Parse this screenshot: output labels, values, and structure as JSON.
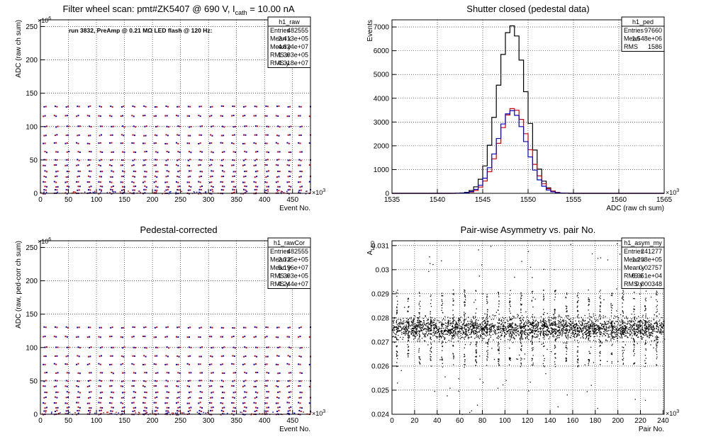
{
  "chart_data": [
    {
      "type": "scatter",
      "title": "Filter wheel scan: pmt#ZK5407 @   690 V, I",
      "title_sub": "cath",
      "title_tail": " = 10.00 nA",
      "annotation": "run 3832, PreAmp @ 0.21 MΩ LED flash @  120 Hz:",
      "xlabel": "Event No.",
      "ylabel": "ADC (raw ch sum)",
      "x_exponent": "×10",
      "x_exponent_power": "3",
      "y_exponent": "×10",
      "y_exponent_power": "6",
      "xlim": [
        0,
        482
      ],
      "ylim": [
        0,
        260
      ],
      "xticks": [
        "0",
        "50",
        "100",
        "150",
        "200",
        "250",
        "300",
        "350",
        "400",
        "450"
      ],
      "yticks": [
        "0",
        "50",
        "100",
        "150",
        "200",
        "250"
      ],
      "grid": true,
      "stats": {
        "name": "h1_raw",
        "rows": [
          {
            "label": "Entries",
            "value": "482555"
          },
          {
            "label": "Mean x",
            "value": "2.413e+05"
          },
          {
            "label": "Mean y",
            "value": "4.824e+07"
          },
          {
            "label": "RMS x",
            "value": "1.393e+05"
          },
          {
            "label": "RMS y",
            "value": "4.318e+07"
          }
        ]
      },
      "series_colors": [
        "#d00000",
        "#0000c8"
      ],
      "levels": [
        0,
        5,
        10,
        17,
        25,
        33,
        42,
        50,
        62,
        75,
        87,
        100,
        116,
        130
      ]
    },
    {
      "type": "line",
      "title": "Shutter closed (pedestal data)",
      "xlabel": "ADC (raw ch sum)",
      "ylabel": "Events",
      "x_exponent": "×10",
      "x_exponent_power": "3",
      "xlim": [
        1535,
        1565
      ],
      "ylim": [
        0,
        7300
      ],
      "xticks": [
        "1535",
        "1540",
        "1545",
        "1550",
        "1555",
        "1560",
        "1565"
      ],
      "yticks": [
        "0",
        "1000",
        "2000",
        "3000",
        "4000",
        "5000",
        "6000",
        "7000"
      ],
      "grid": true,
      "stats": {
        "name": "h1_ped",
        "rows": [
          {
            "label": "Entries",
            "value": "97660"
          },
          {
            "label": "Mean",
            "value": "1.548e+06"
          },
          {
            "label": "RMS",
            "value": "1586"
          }
        ]
      },
      "series": [
        {
          "color": "#000000",
          "mean": 1548.2,
          "sigma": 1.55,
          "peak": 7050
        },
        {
          "color": "#d00000",
          "mean": 1548.4,
          "sigma": 1.6,
          "peak": 3580
        },
        {
          "color": "#0000c8",
          "mean": 1548.2,
          "sigma": 1.6,
          "peak": 3480
        }
      ]
    },
    {
      "type": "scatter",
      "title": "Pedestal-corrected",
      "xlabel": "Event No.",
      "ylabel": "ADC (raw, ped-corr ch sum)",
      "x_exponent": "×10",
      "x_exponent_power": "3",
      "y_exponent": "×10",
      "y_exponent_power": "6",
      "xlim": [
        0,
        482
      ],
      "ylim": [
        0,
        260
      ],
      "xticks": [
        "0",
        "50",
        "100",
        "150",
        "200",
        "250",
        "300",
        "350",
        "400",
        "450"
      ],
      "yticks": [
        "0",
        "50",
        "100",
        "150",
        "200",
        "250"
      ],
      "grid": true,
      "stats": {
        "name": "h1_rawCor",
        "rows": [
          {
            "label": "Entries",
            "value": "482555"
          },
          {
            "label": "Mean x",
            "value": "2.325e+05"
          },
          {
            "label": "Mean y",
            "value": "5.196e+07"
          },
          {
            "label": "RMS x",
            "value": "1.393e+05"
          },
          {
            "label": "RMS y",
            "value": "4.244e+07"
          }
        ]
      },
      "series_colors": [
        "#d00000",
        "#0000c8"
      ],
      "levels": [
        0,
        5,
        10,
        17,
        25,
        33,
        42,
        50,
        62,
        75,
        87,
        100,
        116,
        130
      ]
    },
    {
      "type": "scatter",
      "title": "Pair-wise Asymmetry vs. pair No.",
      "xlabel": "Pair No.",
      "ylabel": "A",
      "ylabel_sub": "LED",
      "x_exponent": "×10",
      "x_exponent_power": "3",
      "xlim": [
        0,
        241
      ],
      "ylim": [
        0.024,
        0.0312
      ],
      "xticks": [
        "0",
        "20",
        "40",
        "60",
        "80",
        "100",
        "120",
        "140",
        "160",
        "180",
        "200",
        "220",
        "240"
      ],
      "yticks": [
        "0.024",
        "0.025",
        "0.026",
        "0.027",
        "0.028",
        "0.029",
        "0.03",
        "0.031"
      ],
      "grid": true,
      "stats": {
        "name": "h1_asym_my",
        "rows": [
          {
            "label": "Entries",
            "value": "241277"
          },
          {
            "label": "Mean x",
            "value": "1.208e+05"
          },
          {
            "label": "Mean y",
            "value": "0.02757"
          },
          {
            "label": "RMS x",
            "value": "6.951e+04"
          },
          {
            "label": "RMS y",
            "value": "0.000348"
          }
        ]
      },
      "band_center": 0.02758,
      "band_halfwidth": 0.00045,
      "spike_period": 10.0,
      "spike_start": 4.0
    }
  ]
}
